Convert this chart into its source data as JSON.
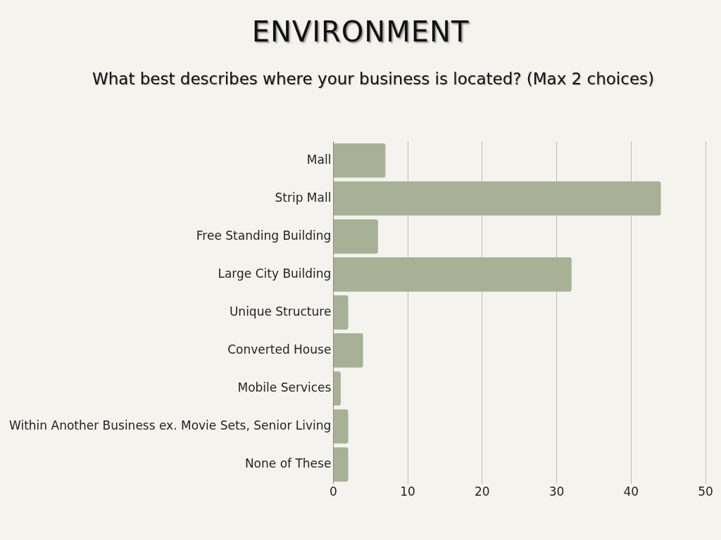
{
  "chart_data": {
    "type": "bar",
    "orientation": "horizontal",
    "title": "ENVIRONMENT",
    "subtitle": "What best describes where your business is located? (Max 2 choices)",
    "categories": [
      "Mall",
      "Strip Mall",
      "Free Standing Building",
      "Large City Building",
      "Unique Structure",
      "Converted House",
      "Mobile Services",
      "Within Another Business ex. Movie Sets, Senior Living",
      "None of These"
    ],
    "values": [
      7,
      44,
      6,
      32,
      2,
      4,
      1,
      2,
      2
    ],
    "color": "#a8b096",
    "xlim": [
      0,
      50
    ],
    "xticks": [
      0,
      10,
      20,
      30,
      40,
      50
    ],
    "grid": "x",
    "legend": false
  }
}
